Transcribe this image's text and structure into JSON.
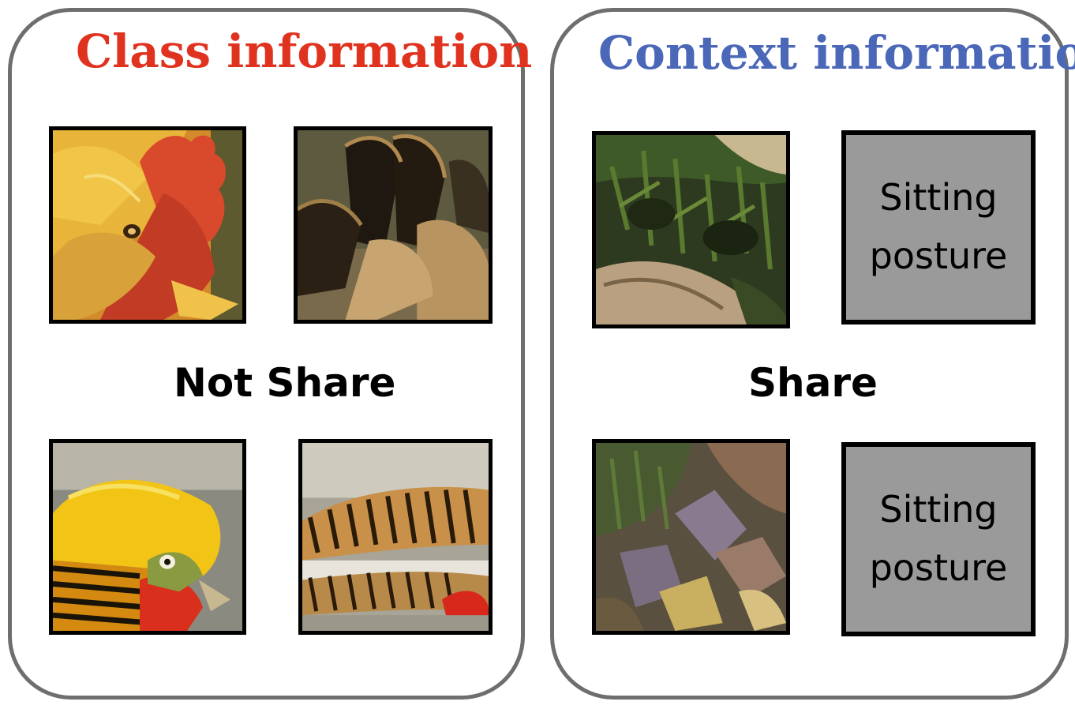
{
  "left_panel": {
    "title": "Class information",
    "title_color": "#e0331f",
    "label": "Not Share"
  },
  "right_panel": {
    "title": "Context information",
    "title_color": "#4a67b8",
    "label": "Share",
    "posture_boxes": [
      {
        "line1": "Sitting",
        "line2": "posture"
      },
      {
        "line1": "Sitting",
        "line2": "posture"
      }
    ]
  },
  "colors": {
    "panel_border": "#6e6e6e",
    "posture_fill": "#9a9a9a"
  }
}
